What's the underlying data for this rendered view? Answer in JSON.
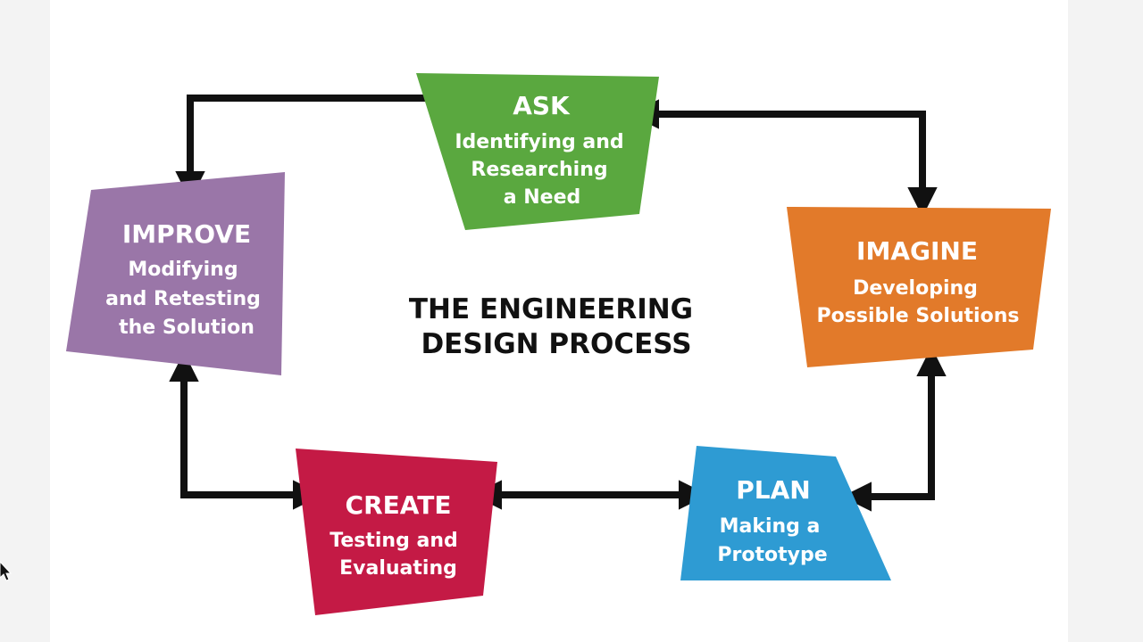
{
  "title": {
    "line1": "THE ENGINEERING",
    "line2": "DESIGN PROCESS"
  },
  "steps": {
    "ask": {
      "title": "ASK",
      "lines": [
        "Identifying and",
        "Researching",
        "a Need"
      ],
      "color": "#5aa83f"
    },
    "imagine": {
      "title": "IMAGINE",
      "lines": [
        "Developing",
        "Possible Solutions"
      ],
      "color": "#e27a2a"
    },
    "plan": {
      "title": "PLAN",
      "lines": [
        "Making a",
        "Prototype"
      ],
      "color": "#2e9bd3"
    },
    "create": {
      "title": "CREATE",
      "lines": [
        "Testing and",
        "Evaluating"
      ],
      "color": "#c41a45"
    },
    "improve": {
      "title": "IMPROVE",
      "lines": [
        "Modifying",
        "and Retesting",
        "the Solution"
      ],
      "color": "#9a76a8"
    }
  },
  "colors": {
    "arrow": "#111111",
    "text": "#ffffff"
  }
}
